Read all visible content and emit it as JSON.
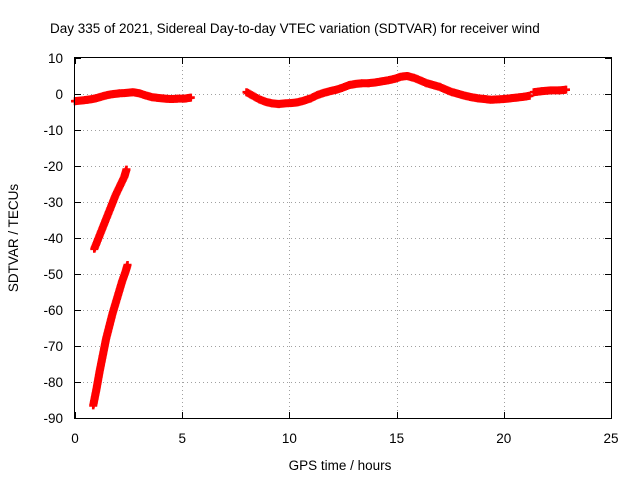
{
  "chart_data": {
    "type": "scatter",
    "title": "Day 335 of 2021, Sidereal Day-to-day VTEC variation (SDTVAR) for receiver wind",
    "xlabel": "GPS time / hours",
    "ylabel": "SDTVAR / TECUs",
    "xlim": [
      0,
      25
    ],
    "ylim": [
      -90,
      10
    ],
    "x_ticks": [
      0,
      5,
      10,
      15,
      20,
      25
    ],
    "y_ticks": [
      10,
      0,
      -10,
      -20,
      -30,
      -40,
      -50,
      -60,
      -70,
      -80,
      -90
    ],
    "grid": true,
    "marker": "+",
    "series": [
      {
        "name": "SDTVAR",
        "color": "#ff0000",
        "segments": [
          {
            "x": [
              0.0,
              0.3,
              0.6,
              0.9,
              1.2,
              1.5,
              1.8,
              2.1,
              2.4,
              2.7,
              3.0,
              3.3,
              3.6,
              3.9,
              4.2,
              4.5,
              4.8,
              5.1,
              5.4
            ],
            "y": [
              -2.0,
              -1.8,
              -1.6,
              -1.3,
              -0.8,
              -0.3,
              0.0,
              0.2,
              0.3,
              0.5,
              0.2,
              -0.4,
              -0.9,
              -1.1,
              -1.3,
              -1.4,
              -1.3,
              -1.3,
              -1.0
            ]
          },
          {
            "x": [
              8.0,
              8.3,
              8.6,
              8.9,
              9.2,
              9.5,
              9.8,
              10.1,
              10.4,
              10.7,
              11.0,
              11.3,
              11.6,
              11.9,
              12.2,
              12.5,
              12.8,
              13.1,
              13.4,
              13.7,
              14.0,
              14.3,
              14.6,
              14.9,
              15.2,
              15.5,
              15.8,
              16.1,
              16.4,
              16.7,
              17.0,
              17.3,
              17.6,
              17.9,
              18.2,
              18.5,
              18.8,
              19.1,
              19.4,
              19.7,
              20.0,
              20.3,
              20.6,
              20.9,
              21.2
            ],
            "y": [
              0.5,
              -0.5,
              -1.5,
              -2.2,
              -2.6,
              -2.8,
              -2.6,
              -2.5,
              -2.3,
              -1.8,
              -1.2,
              -0.3,
              0.3,
              0.8,
              1.2,
              1.8,
              2.5,
              2.8,
              3.0,
              3.0,
              3.2,
              3.5,
              3.8,
              4.2,
              4.8,
              5.0,
              4.5,
              3.8,
              3.0,
              2.5,
              2.0,
              1.2,
              0.5,
              0.0,
              -0.5,
              -0.9,
              -1.2,
              -1.4,
              -1.6,
              -1.5,
              -1.4,
              -1.2,
              -1.0,
              -0.8,
              -0.5
            ]
          },
          {
            "x": [
              21.4,
              21.8,
              22.2,
              22.6,
              22.9
            ],
            "y": [
              0.5,
              0.8,
              1.0,
              1.0,
              1.2
            ]
          },
          {
            "x": [
              0.9,
              1.1,
              1.3,
              1.5,
              1.7,
              1.9,
              2.1,
              2.3,
              2.4
            ],
            "y": [
              -43.0,
              -40.0,
              -37.0,
              -34.0,
              -31.0,
              -28.0,
              -25.5,
              -23.0,
              -21.0
            ]
          },
          {
            "x": [
              0.85,
              1.0,
              1.15,
              1.3,
              1.45,
              1.6,
              1.75,
              1.9,
              2.05,
              2.2,
              2.35,
              2.45
            ],
            "y": [
              -86.5,
              -82.0,
              -77.0,
              -72.5,
              -68.0,
              -64.5,
              -61.0,
              -58.0,
              -55.0,
              -52.0,
              -49.5,
              -47.5
            ]
          }
        ]
      }
    ]
  }
}
